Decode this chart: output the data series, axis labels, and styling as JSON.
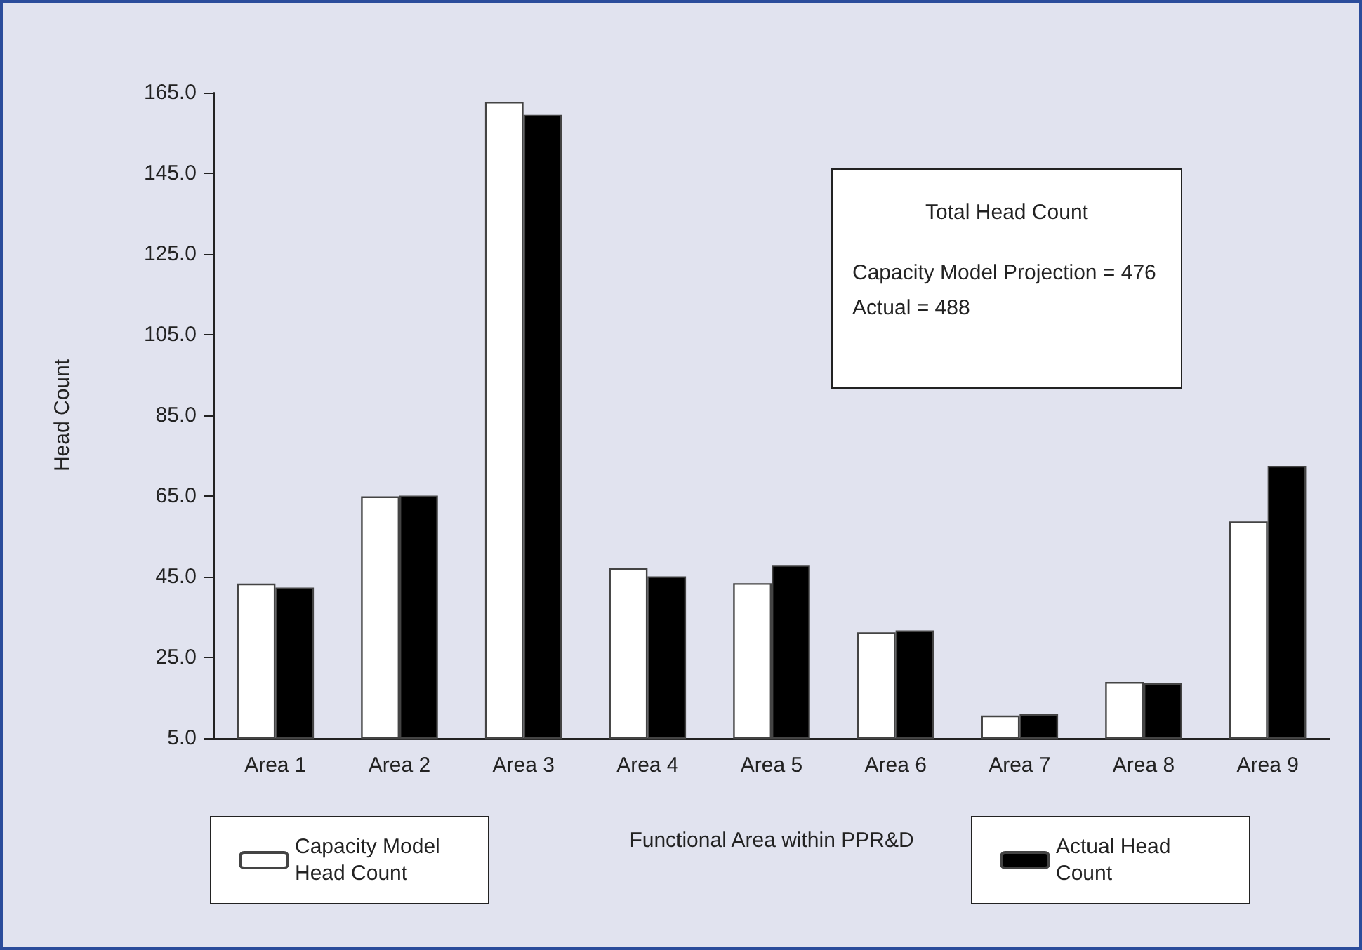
{
  "chart_data": {
    "type": "bar",
    "xlabel": "Functional Area within PPR&D",
    "ylabel": "Head Count",
    "categories": [
      "Area 1",
      "Area 2",
      "Area 3",
      "Area 4",
      "Area 5",
      "Area 6",
      "Area 7",
      "Area 8",
      "Area 9"
    ],
    "series": [
      {
        "name": "Capacity Model Head Count",
        "color": "#ffffff",
        "values": [
          43.3,
          64.9,
          162.7,
          47.1,
          43.4,
          31.2,
          10.6,
          18.9,
          58.7
        ]
      },
      {
        "name": "Actual Head Count",
        "color": "#000000",
        "values": [
          42.3,
          65.1,
          159.5,
          45.1,
          47.9,
          31.7,
          11.0,
          18.6,
          72.5
        ]
      }
    ],
    "ylim": [
      5,
      165
    ],
    "yticks": [
      {
        "value": 5,
        "label": "5.0"
      },
      {
        "value": 25,
        "label": "25.0"
      },
      {
        "value": 45,
        "label": "45.0"
      },
      {
        "value": 65,
        "label": "65.0"
      },
      {
        "value": 85,
        "label": "85.0"
      },
      {
        "value": 105,
        "label": "105.0"
      },
      {
        "value": 125,
        "label": "125.0"
      },
      {
        "value": 145,
        "label": "145.0"
      },
      {
        "value": 165,
        "label": "165.0"
      }
    ],
    "annotations": [
      "Total Head Count",
      "Capacity Model Projection = 476",
      "Actual = 488"
    ],
    "grid": false,
    "legend": "bottom"
  }
}
